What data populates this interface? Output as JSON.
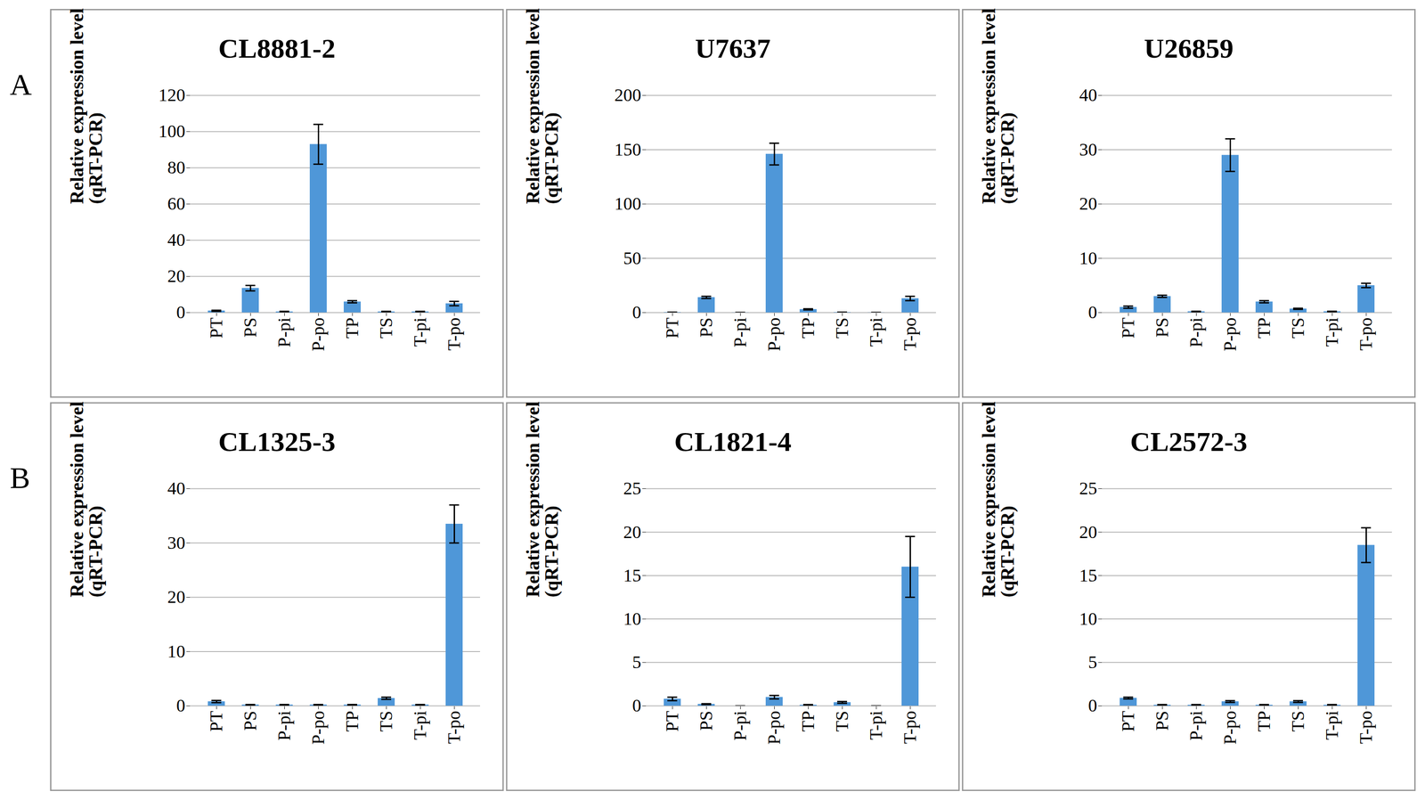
{
  "chart_data": [
    {
      "type": "bar",
      "panel_label": "A",
      "title": "CL8881-2",
      "ylabel": "Relative expression level (qRT-PCR)",
      "categories": [
        "PT",
        "PS",
        "P-pi",
        "P-po",
        "TP",
        "TS",
        "T-pi",
        "T-po"
      ],
      "values": [
        1,
        13.5,
        0.5,
        93,
        6,
        0.5,
        0.5,
        5
      ],
      "errors": [
        0.3,
        1.5,
        0.2,
        11,
        0.6,
        0.2,
        0.2,
        1.2
      ],
      "color": "#4f97d8",
      "ylim": [
        0,
        120
      ],
      "yticks": [
        0,
        20,
        40,
        60,
        80,
        100,
        120
      ],
      "grid": true
    },
    {
      "type": "bar",
      "title": "U7637",
      "ylabel": "Relative expression level (qRT-PCR)",
      "categories": [
        "PT",
        "PS",
        "P-pi",
        "P-po",
        "TP",
        "TS",
        "T-pi",
        "T-po"
      ],
      "values": [
        0.3,
        14,
        0.1,
        146,
        3,
        0.3,
        0.1,
        13
      ],
      "errors": [
        0.1,
        1,
        0.05,
        10,
        0.5,
        0.1,
        0.05,
        2
      ],
      "color": "#4f97d8",
      "ylim": [
        0,
        200
      ],
      "yticks": [
        0,
        50,
        100,
        150,
        200
      ],
      "grid": true
    },
    {
      "type": "bar",
      "title": "U26859",
      "ylabel": "Relative expression level (qRT-PCR)",
      "categories": [
        "PT",
        "PS",
        "P-pi",
        "P-po",
        "TP",
        "TS",
        "T-pi",
        "T-po"
      ],
      "values": [
        1,
        3,
        0.2,
        29,
        2,
        0.7,
        0.2,
        5
      ],
      "errors": [
        0.2,
        0.2,
        0.05,
        3,
        0.2,
        0.1,
        0.05,
        0.4
      ],
      "color": "#4f97d8",
      "ylim": [
        0,
        40
      ],
      "yticks": [
        0,
        10,
        20,
        30,
        40
      ],
      "grid": true
    },
    {
      "type": "bar",
      "panel_label": "B",
      "title": "CL1325-3",
      "ylabel": "Relative expression level (qRT-PCR)",
      "categories": [
        "PT",
        "PS",
        "P-pi",
        "P-po",
        "TP",
        "TS",
        "T-pi",
        "T-po"
      ],
      "values": [
        0.8,
        0.2,
        0.2,
        0.2,
        0.2,
        1.4,
        0.2,
        33.5
      ],
      "errors": [
        0.2,
        0.05,
        0.05,
        0.05,
        0.05,
        0.2,
        0.05,
        3.5
      ],
      "color": "#4f97d8",
      "ylim": [
        0,
        40
      ],
      "yticks": [
        0,
        10,
        20,
        30,
        40
      ],
      "grid": true
    },
    {
      "type": "bar",
      "title": "CL1821-4",
      "ylabel": "Relative expression level (qRT-PCR)",
      "categories": [
        "PT",
        "PS",
        "P-pi",
        "P-po",
        "TP",
        "TS",
        "T-pi",
        "T-po"
      ],
      "values": [
        0.8,
        0.2,
        0,
        1,
        0.1,
        0.4,
        0,
        16
      ],
      "errors": [
        0.2,
        0.05,
        0,
        0.2,
        0.05,
        0.1,
        0,
        3.5
      ],
      "color": "#4f97d8",
      "ylim": [
        0,
        25
      ],
      "yticks": [
        0,
        5,
        10,
        15,
        20,
        25
      ],
      "grid": true
    },
    {
      "type": "bar",
      "title": "CL2572-3",
      "ylabel": "Relative expression level (qRT-PCR)",
      "categories": [
        "PT",
        "PS",
        "P-pi",
        "P-po",
        "TP",
        "TS",
        "T-pi",
        "T-po"
      ],
      "values": [
        0.9,
        0.1,
        0.1,
        0.5,
        0.1,
        0.5,
        0.1,
        18.5
      ],
      "errors": [
        0.1,
        0.05,
        0.05,
        0.1,
        0.05,
        0.1,
        0.05,
        2
      ],
      "color": "#4f97d8",
      "ylim": [
        0,
        25
      ],
      "yticks": [
        0,
        5,
        10,
        15,
        20,
        25
      ],
      "grid": true
    }
  ]
}
